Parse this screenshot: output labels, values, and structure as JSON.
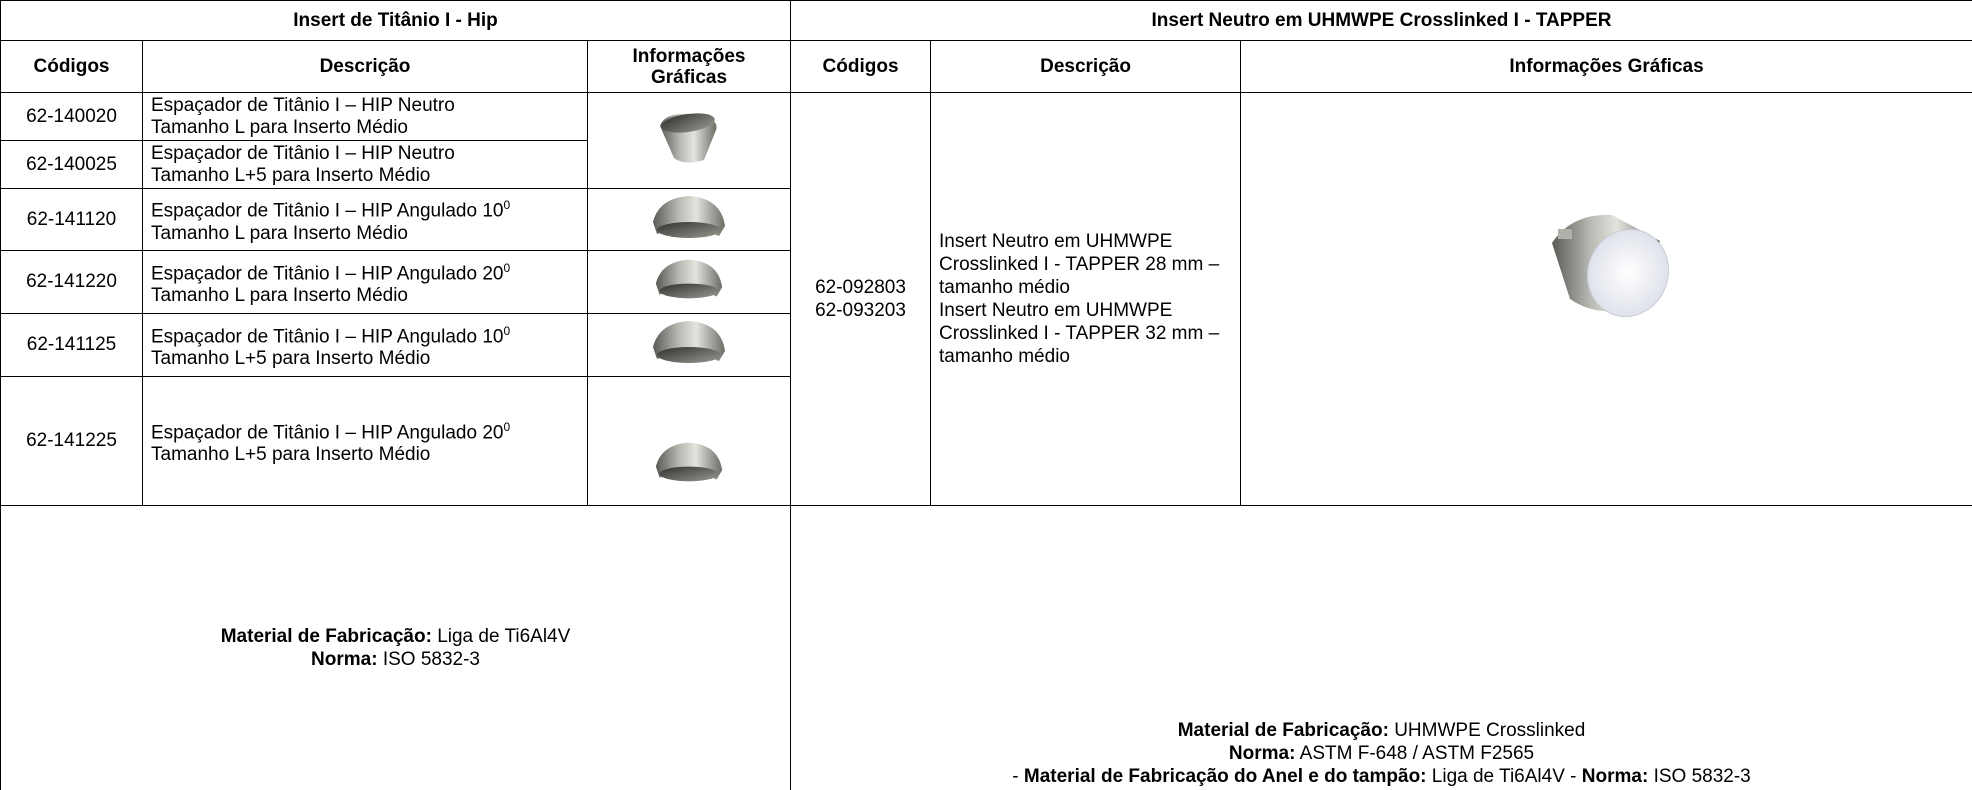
{
  "left": {
    "title": "Insert de Titânio I - Hip",
    "headers": [
      "Códigos",
      "Descrição",
      "Informações Gráficas"
    ],
    "rows": [
      {
        "code": "62-140020",
        "line1": "Espaçador de Titânio I – HIP Neutro",
        "line2": "Tamanho L para Inserto Médio"
      },
      {
        "code": "62-140025",
        "line1": "Espaçador de Titânio I – HIP Neutro",
        "line2": "Tamanho L+5 para Inserto Médio"
      },
      {
        "code": "62-141120",
        "line1": "Espaçador de Titânio I – HIP Angulado 10",
        "sup": "0",
        "line2": "Tamanho L para Inserto Médio"
      },
      {
        "code": "62-141220",
        "line1": "Espaçador de Titânio I – HIP Angulado 20",
        "sup": "0",
        "line2": "Tamanho L para Inserto Médio"
      },
      {
        "code": "62-141125",
        "line1": "Espaçador de Titânio I – HIP Angulado 10",
        "sup": "0",
        "line2": "Tamanho L+5 para Inserto Médio"
      },
      {
        "code": "62-141225",
        "line1": "Espaçador de Titânio I – HIP Angulado 20",
        "sup": "0",
        "line2": "Tamanho L+5 para Inserto Médio"
      }
    ],
    "footer": {
      "material_label": "Material de Fabricação:",
      "material_value": "Liga de Ti6Al4V",
      "norma_label": "Norma:",
      "norma_value": "ISO 5832-3"
    }
  },
  "right": {
    "title": "Insert Neutro em UHMWPE Crosslinked I - TAPPER",
    "headers": [
      "Códigos",
      "Descrição",
      "Informações Gráficas"
    ],
    "codes": [
      "62-092803",
      "62-093203"
    ],
    "descriptions": [
      "Insert Neutro em UHMWPE Crosslinked I - TAPPER 28 mm – tamanho médio",
      "Insert Neutro em UHMWPE Crosslinked I - TAPPER 32 mm – tamanho médio"
    ],
    "footer": {
      "material_label": "Material de Fabricação:",
      "material_value": "UHMWPE Crosslinked",
      "norma_label": "Norma:",
      "norma_value": "ASTM F-648 / ASTM F2565",
      "prefix": "-",
      "ring_label": "Material de Fabricação do Anel e do tampão:",
      "ring_value": "Liga de Ti6Al4V -",
      "ring_norma_label": "Norma:",
      "ring_norma_value": "ISO 5832-3"
    }
  }
}
